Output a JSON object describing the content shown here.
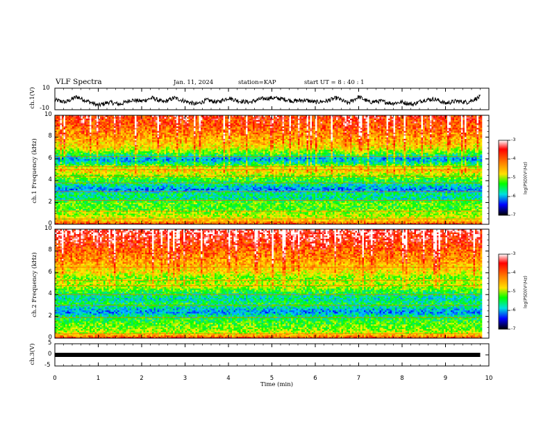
{
  "header": {
    "title": "VLF Spectra",
    "date": "Jan. 11, 2024",
    "station": "station=KAP",
    "start": "start UT =  8 : 40 : 1"
  },
  "colorbar": {
    "label": "log(PSD)(V²/Hz)",
    "ticks": [
      "-3",
      "-4",
      "-5",
      "-6",
      "-7"
    ],
    "colors": [
      "#ff0000",
      "#ff7f00",
      "#ffe000",
      "#00ff00",
      "#00e5e5",
      "#0000ff",
      "#000000"
    ]
  },
  "chart_data": [
    {
      "type": "line",
      "ylabel": "ch.1(V)",
      "yticks": [
        "10",
        "-10"
      ],
      "ylim": [
        -10,
        10
      ],
      "xlim": [
        0,
        10
      ],
      "series": [
        {
          "x": [
            0,
            0.25,
            0.5,
            0.75,
            1,
            1.25,
            1.5,
            1.75,
            2,
            2.25,
            2.5,
            2.75,
            3,
            3.25,
            3.5,
            3.75,
            4,
            4.25,
            4.5,
            4.75,
            5,
            5.25,
            5.5,
            5.75,
            6,
            6.25,
            6.5,
            6.75,
            7,
            7.25,
            7.5,
            7.75,
            8,
            8.25,
            8.5,
            8.75,
            9,
            9.25,
            9.5,
            9.75,
            9.8
          ],
          "values": [
            -1,
            -3,
            2,
            -2,
            -6,
            -3,
            -5,
            -1,
            -2,
            1,
            -3,
            1,
            -2,
            -5,
            -1,
            -3,
            1,
            -2,
            -3,
            0,
            1,
            0,
            -2,
            -1,
            -3,
            -2,
            1,
            -4,
            2,
            -3,
            -2,
            -4,
            -3,
            -5,
            -1,
            0,
            -4,
            -2,
            -3,
            1,
            2
          ]
        }
      ]
    },
    {
      "type": "heatmap",
      "ylabel": "ch.1 Frequency (kHz)",
      "ylim": [
        0,
        10
      ],
      "yticks": [
        "0",
        "2",
        "4",
        "6",
        "8",
        "10"
      ],
      "xlim": [
        0,
        10
      ],
      "data_extent_min": 9.8,
      "band_profile_kHz": [
        [
          0.0,
          -3.6
        ],
        [
          0.5,
          -4.6
        ],
        [
          1.0,
          -4.8
        ],
        [
          1.5,
          -5.1
        ],
        [
          2.0,
          -5.0
        ],
        [
          2.4,
          -5.6
        ],
        [
          2.8,
          -5.4
        ],
        [
          3.2,
          -6.0
        ],
        [
          3.6,
          -5.6
        ],
        [
          4.0,
          -5.2
        ],
        [
          4.5,
          -4.9
        ],
        [
          5.0,
          -4.4
        ],
        [
          5.5,
          -5.3
        ],
        [
          6.0,
          -6.0
        ],
        [
          6.5,
          -5.2
        ],
        [
          7.0,
          -4.6
        ],
        [
          8.0,
          -4.2
        ],
        [
          9.0,
          -3.8
        ],
        [
          10.0,
          -3.6
        ]
      ],
      "lines_kHz": [
        0.5,
        1.2,
        2.2,
        3.0,
        3.8,
        4.4,
        5.0,
        5.3,
        6.2
      ]
    },
    {
      "type": "heatmap",
      "ylabel": "ch.2 Frequency (kHz)",
      "ylim": [
        0,
        10
      ],
      "yticks": [
        "0",
        "2",
        "4",
        "6",
        "8",
        "10"
      ],
      "xlim": [
        0,
        10
      ],
      "data_extent_min": 9.8,
      "band_profile_kHz": [
        [
          0.0,
          -3.6
        ],
        [
          0.5,
          -4.7
        ],
        [
          1.0,
          -5.0
        ],
        [
          1.5,
          -5.1
        ],
        [
          2.0,
          -5.4
        ],
        [
          2.4,
          -6.0
        ],
        [
          2.8,
          -5.6
        ],
        [
          3.2,
          -5.3
        ],
        [
          3.6,
          -5.6
        ],
        [
          4.0,
          -5.4
        ],
        [
          4.5,
          -5.0
        ],
        [
          5.0,
          -4.8
        ],
        [
          5.5,
          -5.0
        ],
        [
          6.0,
          -4.6
        ],
        [
          7.0,
          -4.2
        ],
        [
          8.0,
          -3.9
        ],
        [
          9.0,
          -3.5
        ],
        [
          10.0,
          -3.3
        ]
      ],
      "lines_kHz": [
        0.4,
        1.9,
        3.0,
        4.0,
        4.8,
        5.3,
        6.5
      ]
    },
    {
      "type": "line",
      "ylabel": "ch.3(V)",
      "yticks": [
        "5",
        "0",
        "-5"
      ],
      "ylim": [
        -5,
        5
      ],
      "xlim": [
        0,
        10
      ],
      "xlabel": "Time (min)",
      "xticks": [
        "0",
        "1",
        "2",
        "3",
        "4",
        "5",
        "6",
        "7",
        "8",
        "9",
        "10"
      ],
      "series": [
        {
          "x": [
            0,
            9.8
          ],
          "values": [
            0,
            0
          ]
        }
      ]
    }
  ]
}
